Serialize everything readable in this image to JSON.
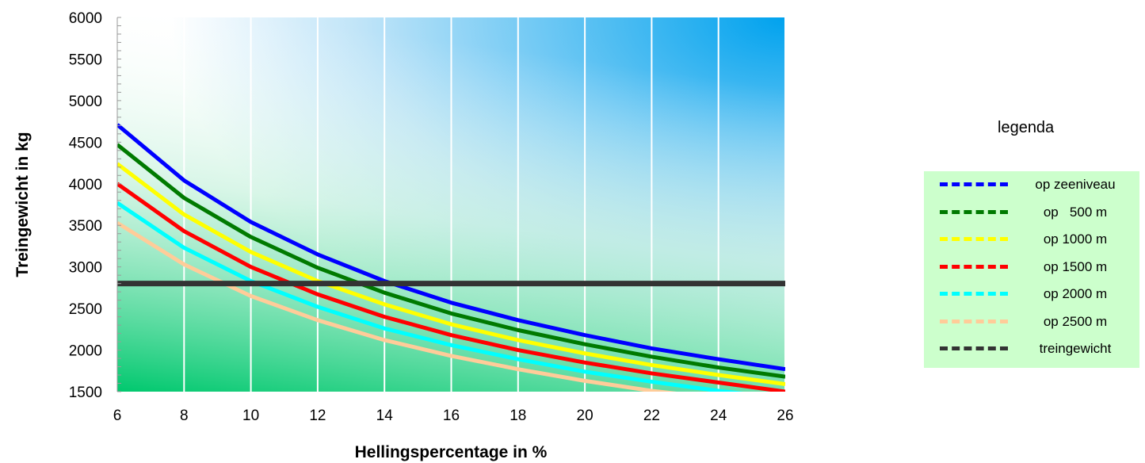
{
  "chart_data": {
    "type": "line",
    "xlabel": "Hellingspercentage in %",
    "ylabel": "Treingewicht in kg",
    "xlim": [
      6,
      26
    ],
    "ylim": [
      1500,
      6000
    ],
    "x_ticks": [
      6,
      8,
      10,
      12,
      14,
      16,
      18,
      20,
      22,
      24,
      26
    ],
    "y_ticks": [
      1500,
      2000,
      2500,
      3000,
      3500,
      4000,
      4500,
      5000,
      5500,
      6000
    ],
    "x": [
      6,
      8,
      10,
      12,
      14,
      16,
      18,
      20,
      22,
      24,
      26
    ],
    "series": [
      {
        "name": "op zeeniveau",
        "color": "#0000ff",
        "values": [
          4710,
          4040,
          3540,
          3150,
          2830,
          2570,
          2360,
          2180,
          2020,
          1890,
          1770
        ]
      },
      {
        "name": "op   500 m",
        "color": "#007a00",
        "values": [
          4470,
          3830,
          3360,
          2990,
          2690,
          2440,
          2240,
          2070,
          1920,
          1790,
          1680
        ]
      },
      {
        "name": "op 1000 m",
        "color": "#ffff00",
        "values": [
          4240,
          3630,
          3180,
          2830,
          2550,
          2310,
          2120,
          1960,
          1820,
          1700,
          1590
        ]
      },
      {
        "name": "op 1500 m",
        "color": "#ff0000",
        "values": [
          4000,
          3430,
          3000,
          2670,
          2400,
          2180,
          2000,
          1850,
          1720,
          1610,
          1500
        ]
      },
      {
        "name": "op 2000 m",
        "color": "#00ffff",
        "values": [
          3770,
          3230,
          2830,
          2520,
          2260,
          2060,
          1890,
          1740,
          1620,
          1510,
          1420
        ]
      },
      {
        "name": "op 2500 m",
        "color": "#ffcc99",
        "values": [
          3530,
          3030,
          2650,
          2360,
          2120,
          1930,
          1770,
          1630,
          1510,
          1420,
          1330
        ]
      },
      {
        "name": "treingewicht",
        "color": "#333333",
        "values": [
          2800,
          2800,
          2800,
          2800,
          2800,
          2800,
          2800,
          2800,
          2800,
          2800,
          2800
        ]
      }
    ],
    "legend_title": "legenda",
    "legend_position": "right",
    "grid": "vertical"
  }
}
